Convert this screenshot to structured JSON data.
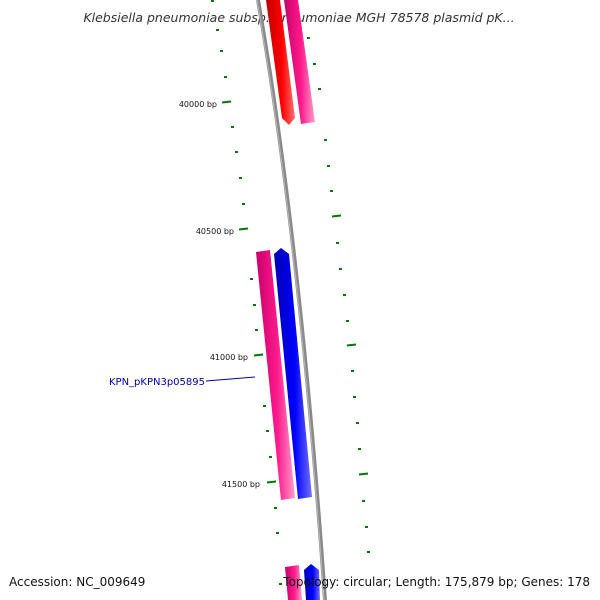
{
  "title": "Klebsiella pneumoniae subsp. pneumoniae MGH 78578 plasmid pK...",
  "accession": "Accession: NC_009649",
  "summary": "Topology: circular; Length: 175,879 bp; Genes: 178",
  "ticks": [
    {
      "label": "40000 bp"
    },
    {
      "label": "40500 bp"
    },
    {
      "label": "41000 bp"
    },
    {
      "label": "41500 bp"
    }
  ],
  "callout": {
    "label": "KPN_pKPN3p05895"
  },
  "colors": {
    "backbone": "#8a8a8a",
    "red_gene": "#ff0000",
    "pink_gene": "#ff1a8c",
    "blue_gene": "#0000ff",
    "tick_green": "#007a00",
    "label_blue": "#0000aa"
  }
}
